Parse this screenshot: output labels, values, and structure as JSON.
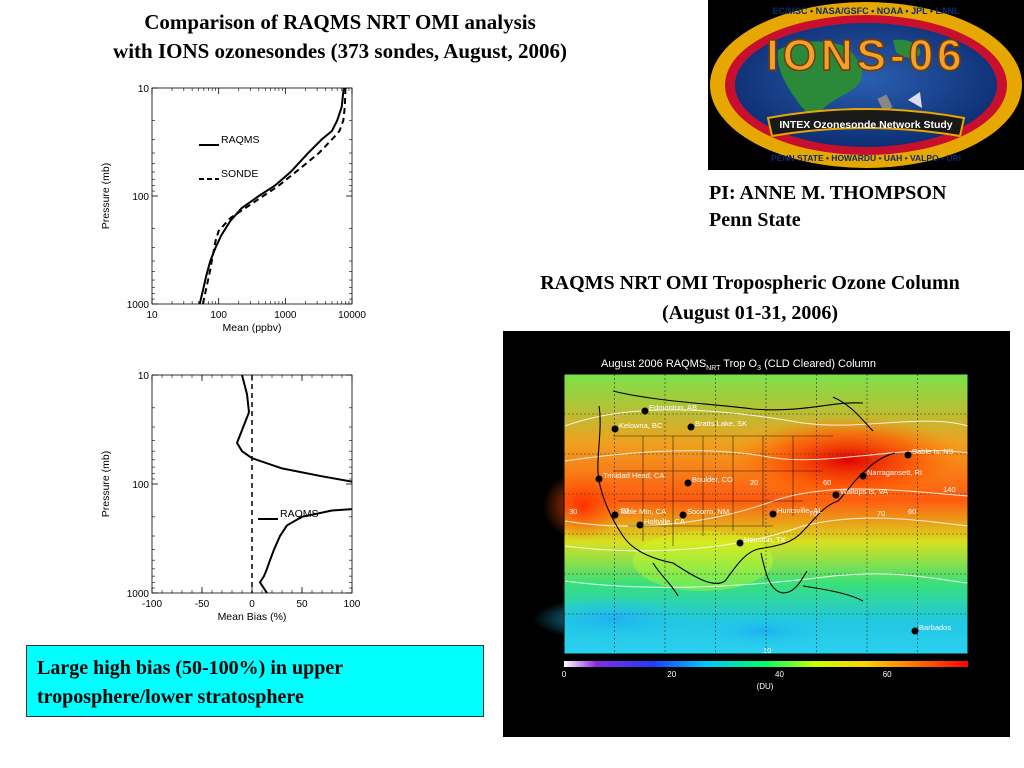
{
  "title": {
    "line1": "Comparison of RAQMS NRT OMI analysis",
    "line2": "with IONS ozonesondes (373 sondes, August, 2006)"
  },
  "pi": {
    "name": "PI: ANNE M. THOMPSON",
    "affiliation": "Penn State"
  },
  "map_title": {
    "line1": "RAQMS NRT OMI Tropospheric Ozone Column",
    "line2": "(August 01-31, 2006)"
  },
  "callout": {
    "line1": "Large high bias (50-100%) in upper",
    "line2": "troposphere/lower stratosphere"
  },
  "logo": {
    "top_text": "EC/MSC • NASA/GSFC • NOAA • JPL • LANL",
    "main_text": "IONS-06",
    "banner_text": "INTEX Ozonesonde Network Study",
    "bottom_text": "PENN STATE • HOWARDU • UAH • VALPO • URI"
  },
  "map": {
    "heading": "August 2006 RAQMS",
    "heading_sub": "NRT",
    "heading_rest": " Trop  O",
    "heading_sub2": "3",
    "heading_end": " (CLD Cleared) Column",
    "colorbar_ticks": [
      "0",
      "20",
      "40",
      "60"
    ],
    "colorbar_unit": "(DU)",
    "contour_labels": [
      "30",
      "20",
      "20",
      "60",
      "70",
      "70",
      "140",
      "60",
      "10"
    ],
    "stations": [
      {
        "label": "Edmonton, AB"
      },
      {
        "label": "Kelowna, BC"
      },
      {
        "label": "Bratts Lake, SK"
      },
      {
        "label": "Sable Is, NS"
      },
      {
        "label": "Narragansett, RI"
      },
      {
        "label": "Wallops Is, VA"
      },
      {
        "label": "Trinidad Head, CA"
      },
      {
        "label": "Boulder, CO"
      },
      {
        "label": "Table Mtn, CA"
      },
      {
        "label": "Socorro, NM"
      },
      {
        "label": "Huntsville, AL"
      },
      {
        "label": "Holtville, CA"
      },
      {
        "label": "Houston, TX"
      },
      {
        "label": "Barbados"
      }
    ]
  },
  "chart_data": [
    {
      "type": "line",
      "xlabel": "Mean (ppbv)",
      "ylabel": "Pressure (mb)",
      "x_scale": "log",
      "y_scale": "log",
      "y_inverted": true,
      "xlim": [
        10,
        10000
      ],
      "ylim": [
        1000,
        10
      ],
      "x_ticks": [
        "10",
        "100",
        "1000",
        "10000"
      ],
      "y_ticks": [
        "10",
        "100",
        "1000"
      ],
      "series": [
        {
          "name": "RAQMS",
          "style": "solid",
          "points": [
            [
              7500,
              10
            ],
            [
              7000,
              15
            ],
            [
              6000,
              20
            ],
            [
              5000,
              25
            ],
            [
              3500,
              30
            ],
            [
              2200,
              40
            ],
            [
              1200,
              60
            ],
            [
              700,
              80
            ],
            [
              400,
              100
            ],
            [
              220,
              130
            ],
            [
              150,
              170
            ],
            [
              110,
              230
            ],
            [
              90,
              300
            ],
            [
              75,
              400
            ],
            [
              65,
              550
            ],
            [
              58,
              750
            ],
            [
              52,
              1000
            ]
          ]
        },
        {
          "name": "SONDE",
          "style": "dashed",
          "points": [
            [
              8000,
              10
            ],
            [
              7800,
              15
            ],
            [
              7400,
              20
            ],
            [
              6500,
              25
            ],
            [
              5000,
              30
            ],
            [
              3200,
              40
            ],
            [
              1700,
              55
            ],
            [
              800,
              80
            ],
            [
              300,
              120
            ],
            [
              150,
              160
            ],
            [
              100,
              210
            ],
            [
              90,
              260
            ],
            [
              82,
              350
            ],
            [
              74,
              500
            ],
            [
              65,
              720
            ],
            [
              58,
              1000
            ]
          ]
        }
      ]
    },
    {
      "type": "line",
      "xlabel": "Mean Bias (%)",
      "ylabel": "Pressure (mb)",
      "y_scale": "log",
      "y_inverted": true,
      "xlim": [
        -100,
        100
      ],
      "ylim": [
        1000,
        10
      ],
      "x_ticks": [
        "-100",
        "-50",
        "0",
        "50",
        "100"
      ],
      "y_ticks": [
        "10",
        "100",
        "1000"
      ],
      "zero_line": 0,
      "series": [
        {
          "name": "RAQMS",
          "style": "solid",
          "points": [
            [
              -10,
              10
            ],
            [
              -5,
              15
            ],
            [
              -3,
              22
            ],
            [
              -10,
              32
            ],
            [
              -15,
              42
            ],
            [
              -10,
              50
            ],
            [
              0,
              58
            ],
            [
              30,
              72
            ],
            [
              70,
              85
            ],
            [
              100,
              95
            ]
          ],
          "points2": [
            [
              100,
              170
            ],
            [
              80,
              175
            ],
            [
              50,
              200
            ],
            [
              35,
              240
            ],
            [
              28,
              300
            ],
            [
              22,
              400
            ],
            [
              18,
              500
            ],
            [
              15,
              600
            ],
            [
              12,
              700
            ],
            [
              8,
              800
            ],
            [
              15,
              1000
            ]
          ]
        }
      ]
    }
  ]
}
